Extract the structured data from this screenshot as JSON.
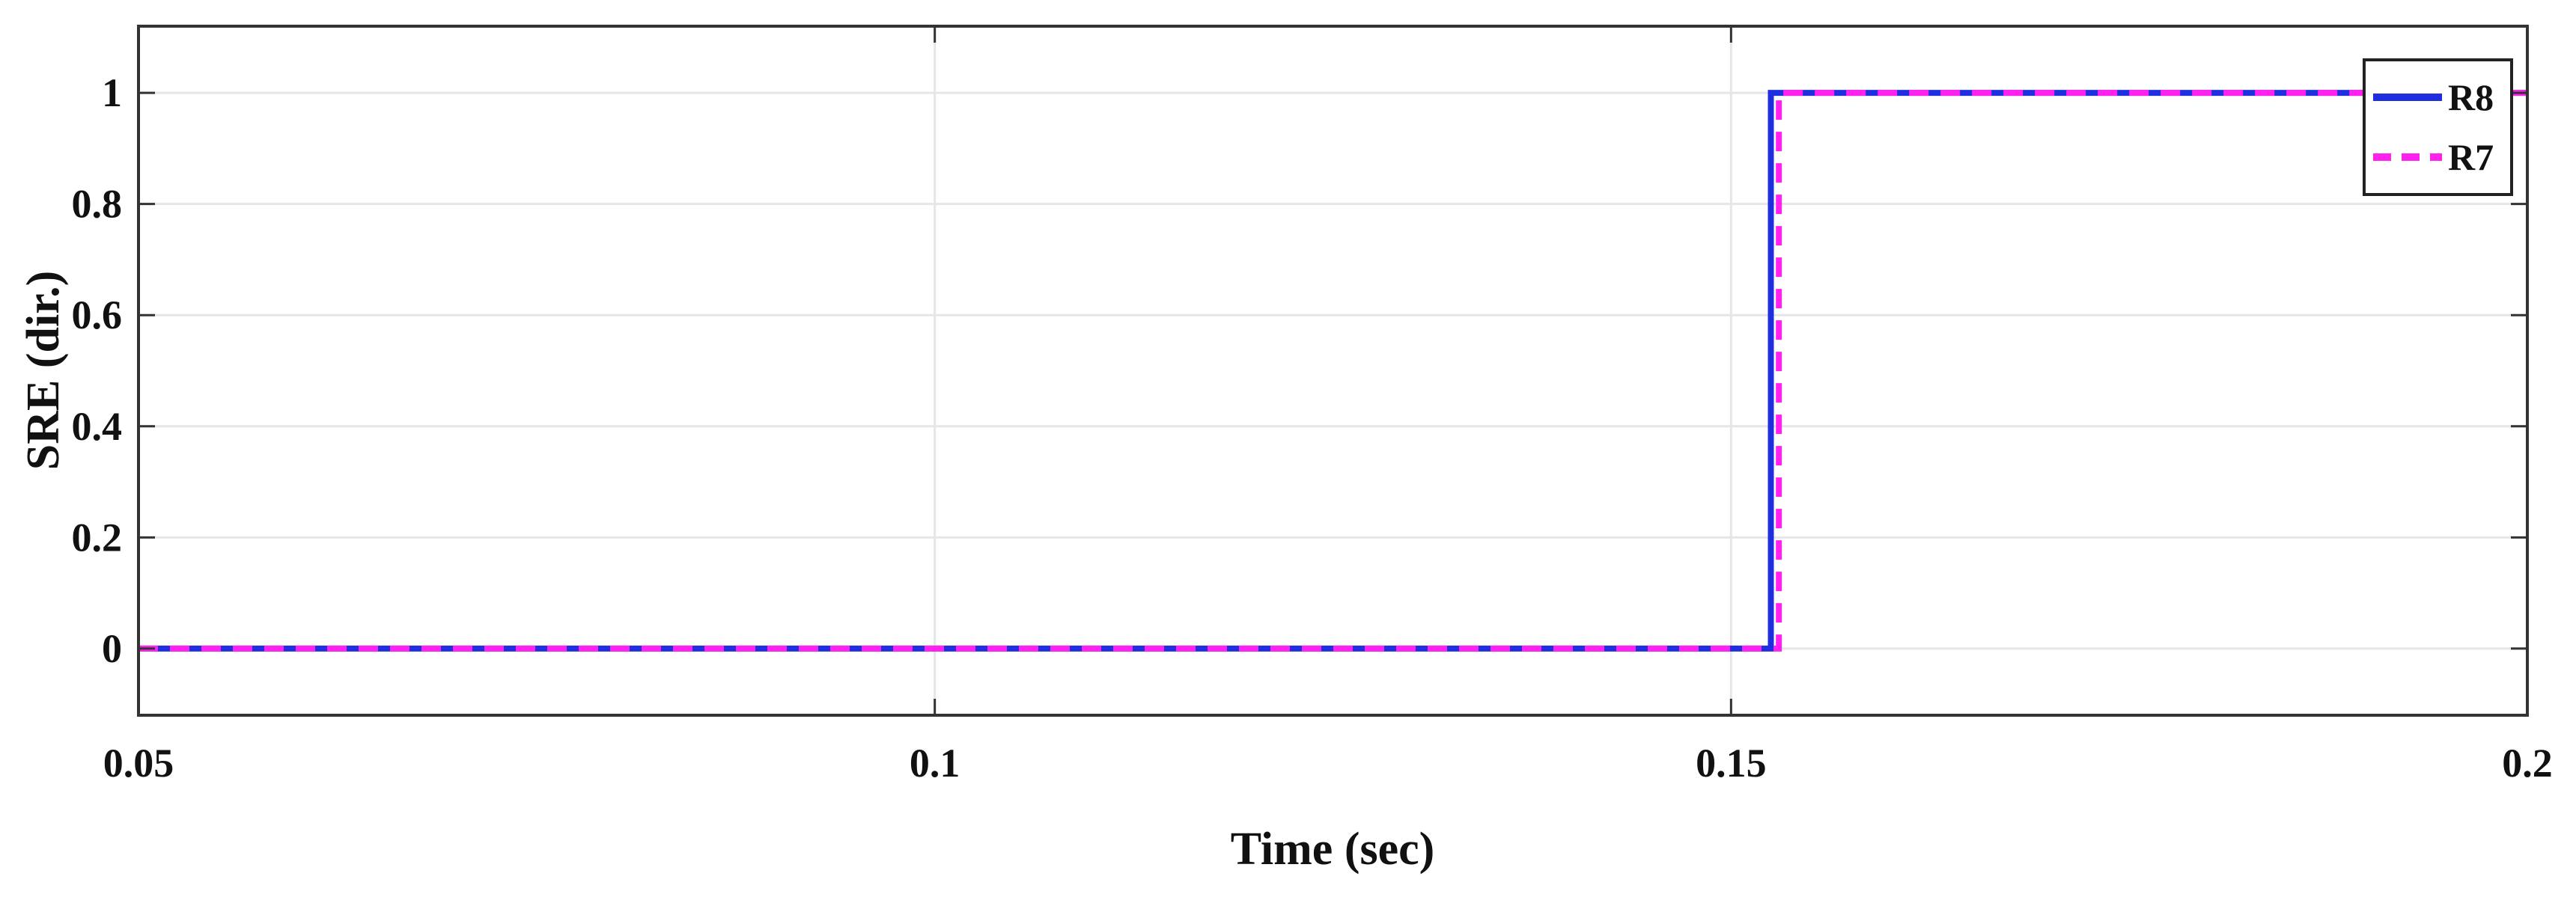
{
  "chart_data": {
    "type": "line",
    "title": "",
    "xlabel": "Time (sec)",
    "ylabel": "SRE (dir.)",
    "xlim": [
      0.05,
      0.2
    ],
    "ylim": [
      -0.12,
      1.12
    ],
    "xticks": [
      0.05,
      0.1,
      0.15,
      0.2
    ],
    "xtick_labels": [
      "0.05",
      "0.1",
      "0.15",
      "0.2"
    ],
    "yticks": [
      0,
      0.2,
      0.4,
      0.6,
      0.8,
      1
    ],
    "ytick_labels": [
      "0",
      "0.2",
      "0.4",
      "0.6",
      "0.8",
      "1"
    ],
    "grid": true,
    "legend_position": "top-right",
    "series": [
      {
        "name": "R8",
        "style": "solid",
        "color": "#1f2fe0",
        "x": [
          0.05,
          0.1525,
          0.1525,
          0.2
        ],
        "y": [
          0,
          0,
          1,
          1
        ]
      },
      {
        "name": "R7",
        "style": "dashed",
        "color": "#ff22ee",
        "x": [
          0.05,
          0.153,
          0.153,
          0.2
        ],
        "y": [
          0,
          0,
          1,
          1
        ]
      }
    ]
  }
}
